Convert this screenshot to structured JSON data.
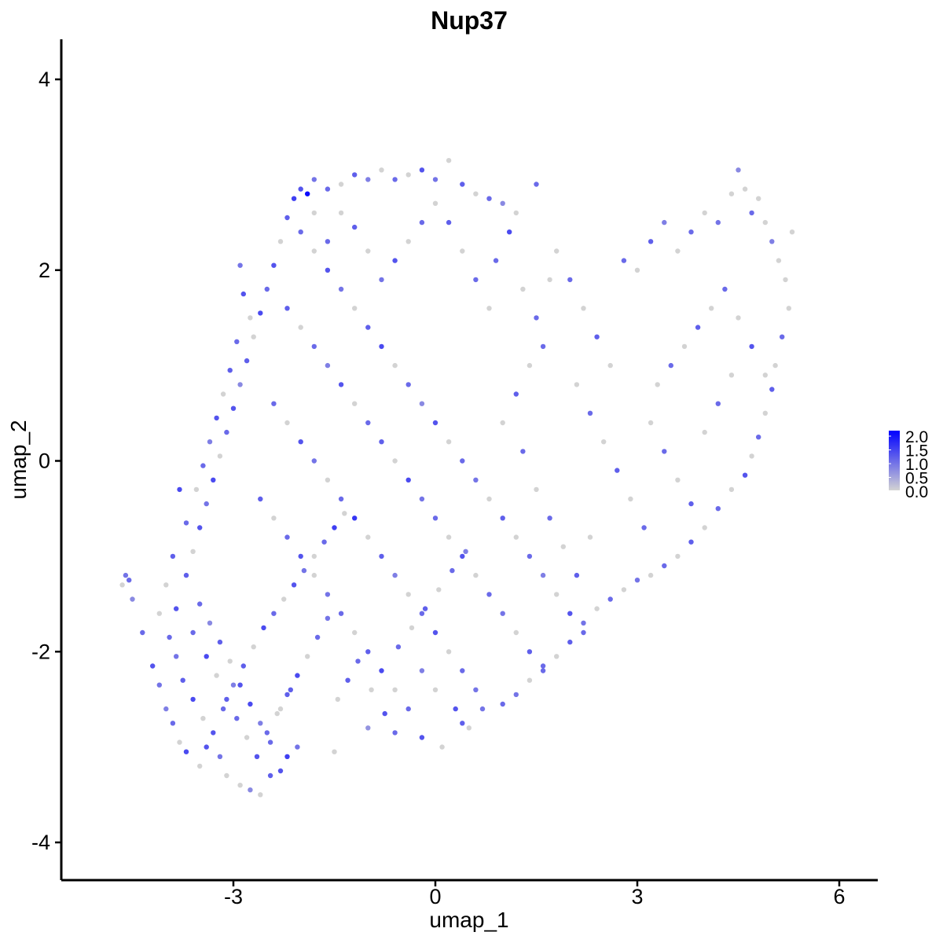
{
  "chart_data": {
    "type": "scatter",
    "title": "Nup37",
    "xlabel": "umap_1",
    "ylabel": "umap_2",
    "xlim": [
      -5.5,
      6.5
    ],
    "ylim": [
      -4.4,
      4.4
    ],
    "x_ticks": [
      -3,
      0,
      3,
      6
    ],
    "y_ticks": [
      -4,
      -2,
      0,
      2,
      4
    ],
    "x_tick_labels": [
      "-3",
      "0",
      "3",
      "6"
    ],
    "y_tick_labels": [
      "-4",
      "-2",
      "0",
      "2",
      "4"
    ],
    "grid": false,
    "legend": {
      "placement": "right",
      "type": "colorbar",
      "min": 0.0,
      "max": 2.0,
      "ticks": [
        0.0,
        0.5,
        1.0,
        1.5,
        2.0
      ],
      "labels": [
        "0.0",
        "0.5",
        "1.0",
        "1.5",
        "2.0"
      ],
      "low_color": "#d3d3d3",
      "high_color": "#0000ff"
    },
    "point_color_low": "#d3d3d3",
    "point_color_high": "#0000ff",
    "points_description_note_omitted": null,
    "points": [
      [
        -4.6,
        -1.2,
        0.9
      ],
      [
        -4.55,
        -1.25,
        1.0
      ],
      [
        -4.65,
        -1.3,
        0.0
      ],
      [
        -4.5,
        -1.45,
        0.7
      ],
      [
        -4.35,
        -1.8,
        1.0
      ],
      [
        -4.2,
        -2.15,
        1.2
      ],
      [
        -4.1,
        -2.35,
        0.9
      ],
      [
        -4.0,
        -2.6,
        0.8
      ],
      [
        -3.9,
        -2.75,
        1.0
      ],
      [
        -3.8,
        -2.95,
        0.0
      ],
      [
        -3.7,
        -3.05,
        1.3
      ],
      [
        -3.5,
        -3.2,
        0.0
      ],
      [
        -3.4,
        -3.0,
        1.2
      ],
      [
        -3.2,
        -3.1,
        0.9
      ],
      [
        -3.1,
        -3.3,
        0.0
      ],
      [
        -2.9,
        -3.4,
        0.0
      ],
      [
        -2.75,
        -3.45,
        0.7
      ],
      [
        -2.6,
        -3.5,
        0.0
      ],
      [
        -2.45,
        -3.3,
        1.1
      ],
      [
        -2.3,
        -3.25,
        1.2
      ],
      [
        -2.2,
        -3.1,
        1.4
      ],
      [
        -2.05,
        -3.0,
        0.9
      ],
      [
        -1.5,
        -3.05,
        0.0
      ],
      [
        -1.0,
        -2.8,
        0.6
      ],
      [
        -0.6,
        -2.85,
        1.0
      ],
      [
        -0.2,
        -2.9,
        1.2
      ],
      [
        0.1,
        -3.0,
        0.0
      ],
      [
        0.4,
        -2.75,
        1.1
      ],
      [
        0.7,
        -2.6,
        0.9
      ],
      [
        1.0,
        -2.55,
        1.0
      ],
      [
        -4.1,
        -1.6,
        0.0
      ],
      [
        -3.95,
        -1.85,
        1.0
      ],
      [
        -3.85,
        -2.05,
        0.9
      ],
      [
        -3.75,
        -2.3,
        1.1
      ],
      [
        -3.6,
        -2.5,
        1.3
      ],
      [
        -3.45,
        -2.7,
        0.0
      ],
      [
        -3.3,
        -2.85,
        1.2
      ],
      [
        -3.15,
        -2.6,
        1.0
      ],
      [
        -3.0,
        -2.35,
        0.8
      ],
      [
        -2.85,
        -2.15,
        1.1
      ],
      [
        -2.7,
        -1.95,
        0.0
      ],
      [
        -2.55,
        -1.75,
        1.3
      ],
      [
        -2.4,
        -1.6,
        1.0
      ],
      [
        -2.25,
        -1.45,
        0.0
      ],
      [
        -2.1,
        -1.3,
        1.2
      ],
      [
        -1.95,
        -1.15,
        0.9
      ],
      [
        -1.8,
        -1.0,
        0.0
      ],
      [
        -1.65,
        -0.85,
        1.0
      ],
      [
        -1.5,
        -0.7,
        1.4
      ],
      [
        -1.35,
        -0.55,
        0.0
      ],
      [
        -3.5,
        -1.5,
        1.0
      ],
      [
        -3.35,
        -1.7,
        0.7
      ],
      [
        -3.2,
        -1.9,
        1.1
      ],
      [
        -3.05,
        -2.1,
        0.0
      ],
      [
        -2.9,
        -2.35,
        1.2
      ],
      [
        -2.75,
        -2.55,
        1.3
      ],
      [
        -2.6,
        -2.75,
        0.8
      ],
      [
        -2.45,
        -2.95,
        1.0
      ],
      [
        -2.3,
        -2.6,
        0.0
      ],
      [
        -2.15,
        -2.4,
        1.1
      ],
      [
        -3.7,
        -1.2,
        1.1
      ],
      [
        -3.6,
        -0.95,
        0.0
      ],
      [
        -3.5,
        -0.7,
        1.2
      ],
      [
        -3.4,
        -0.45,
        0.9
      ],
      [
        -3.3,
        -0.2,
        1.3
      ],
      [
        -3.2,
        0.05,
        0.0
      ],
      [
        -3.1,
        0.3,
        1.0
      ],
      [
        -3.0,
        0.55,
        1.2
      ],
      [
        -2.9,
        0.8,
        0.7
      ],
      [
        -2.8,
        1.05,
        1.1
      ],
      [
        -2.7,
        1.3,
        0.0
      ],
      [
        -2.6,
        1.55,
        1.3
      ],
      [
        -2.5,
        1.8,
        1.0
      ],
      [
        -2.4,
        2.05,
        1.2
      ],
      [
        -2.3,
        2.3,
        0.0
      ],
      [
        -2.2,
        2.55,
        1.1
      ],
      [
        -2.1,
        2.75,
        1.4
      ],
      [
        -1.9,
        2.8,
        1.9
      ],
      [
        -1.8,
        2.95,
        0.9
      ],
      [
        -1.6,
        2.85,
        1.0
      ],
      [
        -1.4,
        2.9,
        0.0
      ],
      [
        -1.2,
        3.0,
        1.1
      ],
      [
        -1.0,
        2.95,
        0.8
      ],
      [
        -0.8,
        3.05,
        0.0
      ],
      [
        -0.6,
        2.95,
        1.0
      ],
      [
        -0.4,
        3.0,
        0.0
      ],
      [
        -0.2,
        3.05,
        1.2
      ],
      [
        0.0,
        2.95,
        0.9
      ],
      [
        0.2,
        3.15,
        0.0
      ],
      [
        0.4,
        2.9,
        1.1
      ],
      [
        0.6,
        2.8,
        0.0
      ],
      [
        0.8,
        2.75,
        1.0
      ],
      [
        1.0,
        2.7,
        0.7
      ],
      [
        1.2,
        2.6,
        0.0
      ],
      [
        1.5,
        2.9,
        1.0
      ],
      [
        -2.9,
        2.05,
        0.9
      ],
      [
        -2.85,
        1.75,
        1.2
      ],
      [
        -2.75,
        1.5,
        0.0
      ],
      [
        -2.95,
        1.25,
        1.0
      ],
      [
        -3.05,
        0.95,
        1.1
      ],
      [
        -3.15,
        0.7,
        0.0
      ],
      [
        -3.25,
        0.45,
        1.2
      ],
      [
        -3.35,
        0.2,
        0.8
      ],
      [
        -3.45,
        -0.05,
        1.0
      ],
      [
        -3.55,
        -0.3,
        0.0
      ],
      [
        -2.0,
        2.4,
        1.0
      ],
      [
        -1.8,
        2.2,
        0.0
      ],
      [
        -1.6,
        2.0,
        1.2
      ],
      [
        -1.4,
        1.8,
        0.9
      ],
      [
        -1.2,
        1.6,
        0.0
      ],
      [
        -1.0,
        1.4,
        1.1
      ],
      [
        -0.8,
        1.2,
        1.3
      ],
      [
        -0.6,
        1.0,
        0.0
      ],
      [
        -0.4,
        0.8,
        1.0
      ],
      [
        -0.2,
        0.6,
        0.7
      ],
      [
        0.0,
        0.4,
        1.2
      ],
      [
        0.2,
        0.2,
        0.0
      ],
      [
        0.4,
        0.0,
        1.0
      ],
      [
        0.6,
        -0.2,
        0.9
      ],
      [
        0.8,
        -0.4,
        0.0
      ],
      [
        1.0,
        -0.6,
        1.1
      ],
      [
        1.2,
        -0.8,
        0.0
      ],
      [
        1.4,
        -1.0,
        1.0
      ],
      [
        1.6,
        -1.2,
        0.8
      ],
      [
        1.8,
        -1.4,
        0.0
      ],
      [
        2.0,
        -1.6,
        1.2
      ],
      [
        2.2,
        -1.8,
        1.0
      ],
      [
        -2.2,
        1.6,
        1.1
      ],
      [
        -2.0,
        1.4,
        0.0
      ],
      [
        -1.8,
        1.2,
        1.0
      ],
      [
        -1.6,
        1.0,
        0.8
      ],
      [
        -1.4,
        0.8,
        1.2
      ],
      [
        -1.2,
        0.6,
        0.0
      ],
      [
        -1.0,
        0.4,
        1.0
      ],
      [
        -0.8,
        0.2,
        1.1
      ],
      [
        -0.6,
        0.0,
        0.0
      ],
      [
        -0.4,
        -0.2,
        1.3
      ],
      [
        -0.2,
        -0.4,
        0.9
      ],
      [
        0.0,
        -0.6,
        1.0
      ],
      [
        0.2,
        -0.8,
        0.0
      ],
      [
        0.4,
        -1.0,
        1.2
      ],
      [
        0.6,
        -1.2,
        0.0
      ],
      [
        0.8,
        -1.4,
        1.0
      ],
      [
        1.0,
        -1.6,
        0.9
      ],
      [
        1.2,
        -1.8,
        0.0
      ],
      [
        1.4,
        -2.0,
        1.1
      ],
      [
        1.6,
        -2.2,
        1.0
      ],
      [
        -2.4,
        0.6,
        1.0
      ],
      [
        -2.2,
        0.4,
        0.0
      ],
      [
        -2.0,
        0.2,
        1.2
      ],
      [
        -1.8,
        0.0,
        0.9
      ],
      [
        -1.6,
        -0.2,
        0.0
      ],
      [
        -1.4,
        -0.4,
        1.0
      ],
      [
        -1.2,
        -0.6,
        1.5
      ],
      [
        -1.0,
        -0.8,
        0.0
      ],
      [
        -0.8,
        -1.0,
        1.1
      ],
      [
        -0.6,
        -1.2,
        0.8
      ],
      [
        -0.4,
        -1.4,
        0.0
      ],
      [
        -0.2,
        -1.6,
        1.0
      ],
      [
        0.0,
        -1.8,
        1.2
      ],
      [
        0.2,
        -2.0,
        0.0
      ],
      [
        0.4,
        -2.2,
        1.0
      ],
      [
        0.6,
        -2.4,
        0.9
      ],
      [
        -2.6,
        -0.4,
        1.1
      ],
      [
        -2.4,
        -0.6,
        0.0
      ],
      [
        -2.2,
        -0.8,
        1.0
      ],
      [
        -2.0,
        -1.0,
        1.2
      ],
      [
        -1.8,
        -1.2,
        0.0
      ],
      [
        -1.6,
        -1.4,
        0.9
      ],
      [
        -1.4,
        -1.6,
        1.0
      ],
      [
        -1.2,
        -1.8,
        0.0
      ],
      [
        -1.0,
        -2.0,
        1.1
      ],
      [
        -0.8,
        -2.2,
        1.3
      ],
      [
        -0.6,
        -2.4,
        0.0
      ],
      [
        -0.4,
        -2.6,
        1.0
      ],
      [
        -0.2,
        -2.2,
        0.8
      ],
      [
        0.0,
        -2.4,
        0.0
      ],
      [
        0.3,
        -2.6,
        1.2
      ],
      [
        0.5,
        -2.8,
        0.0
      ],
      [
        1.8,
        2.2,
        0.0
      ],
      [
        2.0,
        1.9,
        1.0
      ],
      [
        2.2,
        1.6,
        0.0
      ],
      [
        2.4,
        1.3,
        1.1
      ],
      [
        2.6,
        1.0,
        0.0
      ],
      [
        2.8,
        2.1,
        1.0
      ],
      [
        3.0,
        2.0,
        0.0
      ],
      [
        3.2,
        2.3,
        1.1
      ],
      [
        3.4,
        2.5,
        0.8
      ],
      [
        3.6,
        2.2,
        0.0
      ],
      [
        3.8,
        2.4,
        1.0
      ],
      [
        4.0,
        2.6,
        0.0
      ],
      [
        4.2,
        2.5,
        0.9
      ],
      [
        4.4,
        2.8,
        0.0
      ],
      [
        4.5,
        3.05,
        0.7
      ],
      [
        4.6,
        2.85,
        0.0
      ],
      [
        4.7,
        2.6,
        1.0
      ],
      [
        4.8,
        2.75,
        0.0
      ],
      [
        4.9,
        2.5,
        0.0
      ],
      [
        5.0,
        2.3,
        0.8
      ],
      [
        5.1,
        2.1,
        0.0
      ],
      [
        5.2,
        1.9,
        0.0
      ],
      [
        5.3,
        2.4,
        0.0
      ],
      [
        5.25,
        1.6,
        0.0
      ],
      [
        5.15,
        1.3,
        1.0
      ],
      [
        5.05,
        1.0,
        0.0
      ],
      [
        5.0,
        0.75,
        1.1
      ],
      [
        4.9,
        0.5,
        0.0
      ],
      [
        4.8,
        0.25,
        1.0
      ],
      [
        4.7,
        0.05,
        0.0
      ],
      [
        4.6,
        -0.15,
        1.2
      ],
      [
        4.4,
        -0.3,
        0.0
      ],
      [
        4.2,
        -0.5,
        1.0
      ],
      [
        4.0,
        -0.7,
        0.0
      ],
      [
        3.8,
        -0.85,
        1.1
      ],
      [
        3.6,
        -1.0,
        0.0
      ],
      [
        3.4,
        -1.1,
        1.0
      ],
      [
        3.2,
        -1.2,
        0.0
      ],
      [
        3.0,
        -1.25,
        0.9
      ],
      [
        2.8,
        -1.35,
        0.0
      ],
      [
        2.6,
        -1.45,
        1.0
      ],
      [
        2.4,
        -1.55,
        0.0
      ],
      [
        2.2,
        -1.7,
        0.9
      ],
      [
        2.0,
        -1.9,
        1.1
      ],
      [
        1.8,
        -2.05,
        0.0
      ],
      [
        1.6,
        -2.15,
        1.0
      ],
      [
        1.4,
        -2.3,
        0.0
      ],
      [
        1.2,
        -2.45,
        0.9
      ],
      [
        2.1,
        0.8,
        0.0
      ],
      [
        2.3,
        0.5,
        1.0
      ],
      [
        2.5,
        0.2,
        0.0
      ],
      [
        2.7,
        -0.1,
        1.1
      ],
      [
        2.9,
        -0.4,
        0.0
      ],
      [
        3.1,
        -0.7,
        1.0
      ],
      [
        3.3,
        0.8,
        0.0
      ],
      [
        3.5,
        1.0,
        1.0
      ],
      [
        3.7,
        1.2,
        0.0
      ],
      [
        3.9,
        1.4,
        1.1
      ],
      [
        4.1,
        1.6,
        0.0
      ],
      [
        4.3,
        1.8,
        1.0
      ],
      [
        4.5,
        1.5,
        0.0
      ],
      [
        4.7,
        1.2,
        1.2
      ],
      [
        4.9,
        0.9,
        0.0
      ],
      [
        3.2,
        0.4,
        0.0
      ],
      [
        3.4,
        0.1,
        1.0
      ],
      [
        3.6,
        -0.2,
        0.0
      ],
      [
        3.8,
        -0.45,
        1.1
      ],
      [
        4.0,
        0.3,
        0.0
      ],
      [
        4.2,
        0.6,
        1.0
      ],
      [
        4.4,
        0.9,
        0.0
      ],
      [
        1.6,
        1.2,
        1.0
      ],
      [
        1.4,
        1.0,
        0.0
      ],
      [
        1.2,
        0.7,
        1.1
      ],
      [
        1.0,
        0.4,
        0.0
      ],
      [
        1.3,
        0.1,
        1.0
      ],
      [
        1.5,
        -0.3,
        0.0
      ],
      [
        1.7,
        -0.6,
        1.0
      ],
      [
        1.9,
        -0.9,
        0.0
      ],
      [
        2.1,
        -1.2,
        1.1
      ],
      [
        2.3,
        -0.8,
        0.0
      ],
      [
        0.8,
        1.6,
        0.0
      ],
      [
        0.6,
        1.9,
        1.0
      ],
      [
        0.4,
        2.2,
        0.0
      ],
      [
        0.2,
        2.5,
        1.1
      ],
      [
        0.0,
        2.7,
        0.0
      ],
      [
        -0.2,
        2.5,
        1.0
      ],
      [
        -0.4,
        2.3,
        0.0
      ],
      [
        -0.6,
        2.1,
        1.2
      ],
      [
        -0.8,
        1.9,
        0.9
      ],
      [
        -1.0,
        2.2,
        0.0
      ],
      [
        -1.2,
        2.45,
        1.1
      ],
      [
        -1.4,
        2.6,
        0.0
      ],
      [
        -1.6,
        2.3,
        1.0
      ],
      [
        -1.8,
        2.6,
        0.0
      ],
      [
        -2.0,
        2.85,
        1.2
      ],
      [
        0.9,
        2.1,
        1.0
      ],
      [
        1.1,
        2.4,
        1.3
      ],
      [
        1.3,
        1.8,
        0.0
      ],
      [
        1.5,
        1.5,
        1.0
      ],
      [
        1.7,
        1.9,
        0.0
      ],
      [
        -3.8,
        -0.3,
        1.3
      ],
      [
        -3.7,
        -0.65,
        1.0
      ],
      [
        -3.9,
        -1.0,
        1.1
      ],
      [
        -4.0,
        -1.3,
        0.0
      ],
      [
        -3.85,
        -1.55,
        1.2
      ],
      [
        -3.6,
        -1.8,
        1.0
      ],
      [
        -3.4,
        -2.05,
        1.3
      ],
      [
        -3.25,
        -2.25,
        0.0
      ],
      [
        -3.1,
        -2.5,
        1.1
      ],
      [
        -2.95,
        -2.7,
        1.0
      ],
      [
        -2.8,
        -2.9,
        0.0
      ],
      [
        -2.65,
        -3.1,
        1.2
      ],
      [
        -2.5,
        -2.85,
        1.0
      ],
      [
        -2.35,
        -2.65,
        0.0
      ],
      [
        -2.2,
        -2.45,
        1.1
      ],
      [
        -2.05,
        -2.25,
        1.3
      ],
      [
        -1.9,
        -2.05,
        0.0
      ],
      [
        -1.75,
        -1.85,
        1.0
      ],
      [
        -1.6,
        -1.65,
        0.9
      ],
      [
        -1.45,
        -2.5,
        0.0
      ],
      [
        -1.3,
        -2.3,
        1.1
      ],
      [
        -1.15,
        -2.1,
        1.0
      ],
      [
        -0.95,
        -2.4,
        0.0
      ],
      [
        -0.75,
        -2.65,
        1.2
      ],
      [
        -0.55,
        -1.95,
        1.0
      ],
      [
        -0.35,
        -1.75,
        0.0
      ],
      [
        -0.15,
        -1.55,
        1.1
      ],
      [
        0.05,
        -1.35,
        0.0
      ],
      [
        0.25,
        -1.15,
        1.0
      ],
      [
        0.45,
        -0.95,
        0.8
      ]
    ]
  }
}
